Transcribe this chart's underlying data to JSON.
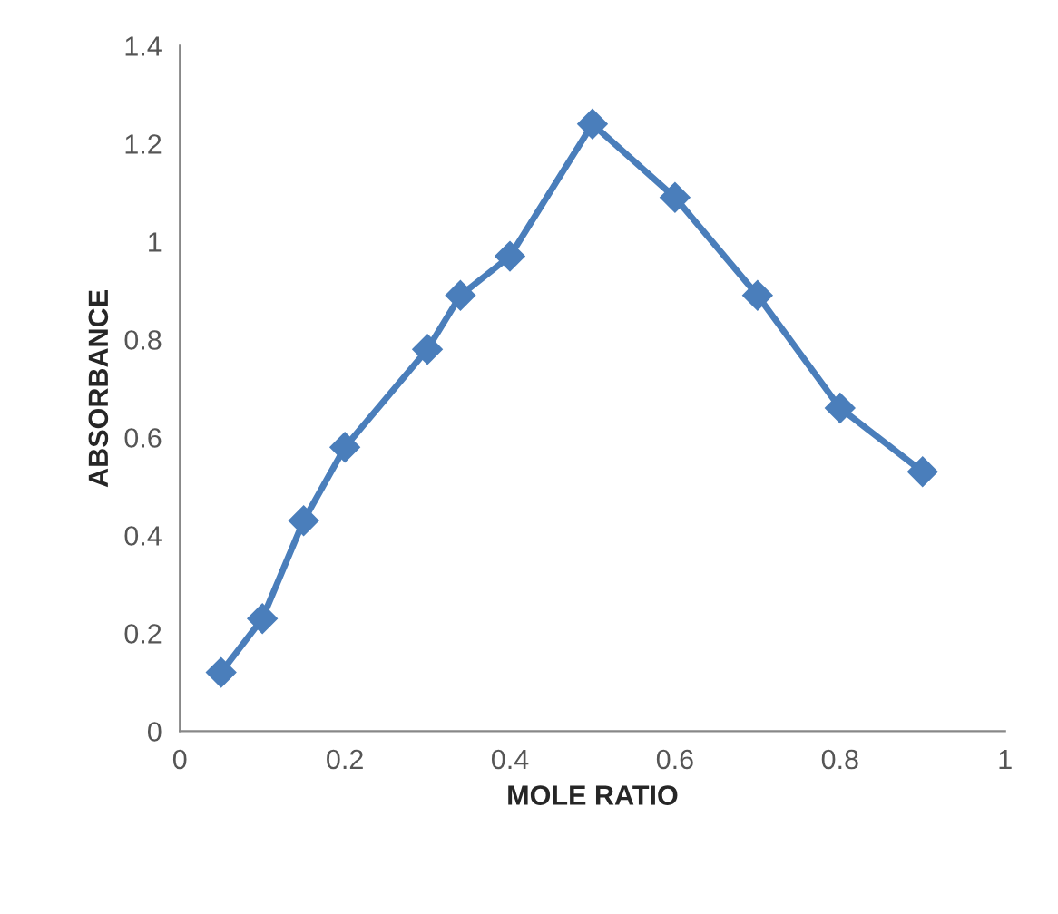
{
  "chart_data": {
    "type": "line",
    "xlabel": "MOLE RATIO",
    "ylabel": "ABSORBANCE",
    "x": [
      0.05,
      0.1,
      0.15,
      0.2,
      0.3,
      0.34,
      0.4,
      0.5,
      0.6,
      0.7,
      0.8,
      0.9
    ],
    "series": [
      {
        "color": "#4a7ebb",
        "values": [
          0.12,
          0.23,
          0.43,
          0.58,
          0.78,
          0.89,
          0.97,
          1.24,
          1.09,
          0.89,
          0.66,
          0.53
        ]
      }
    ],
    "xlim": [
      0,
      1
    ],
    "xticks": [
      0,
      0.2,
      0.4,
      0.6,
      0.8,
      1
    ],
    "ylim": [
      0,
      1.4
    ],
    "yticks": [
      0,
      0.2,
      0.4,
      0.6,
      0.8,
      1,
      1.2,
      1.4
    ],
    "marker": "diamond",
    "line_style": "solid",
    "grid": false
  }
}
